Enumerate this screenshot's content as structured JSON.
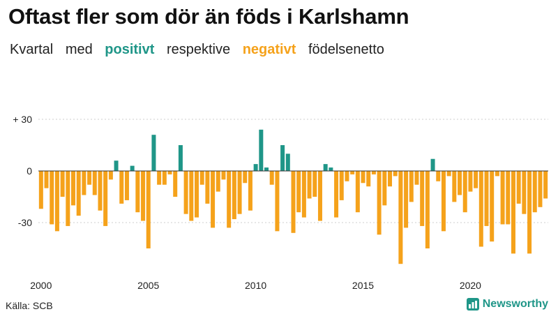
{
  "header": {
    "title": "Oftast fler som dör än föds i Karlshamn",
    "subtitle_parts": [
      "Kvartal",
      "med",
      "positivt",
      "respektive",
      "negativt",
      "födelsenetto"
    ]
  },
  "footer": {
    "source": "Källa: SCB",
    "brand": "Newsworthy"
  },
  "colors": {
    "positive": "#1f9688",
    "negative": "#f5a21b",
    "baseline": "#333333",
    "gridline": "#cccccc"
  },
  "chart_data": {
    "type": "bar",
    "title": "Oftast fler som dör än föds i Karlshamn",
    "subtitle": "Kvartal med positivt respektive negativt födelsenetto",
    "xlabel": "",
    "ylabel": "",
    "ylim": [
      -55,
      30
    ],
    "y_ticks": [
      30,
      0,
      -30
    ],
    "y_tick_labels": [
      "+ 30",
      "0",
      "-30"
    ],
    "x_ticks": [
      "2000",
      "2005",
      "2010",
      "2015",
      "2020"
    ],
    "grid": "horizontal dotted",
    "start": "2000 Q1",
    "frequency": "quarterly",
    "values": [
      -22,
      -10,
      -31,
      -35,
      -15,
      -32,
      -20,
      -26,
      -14,
      -8,
      -14,
      -23,
      -32,
      -5,
      6,
      -19,
      -17,
      3,
      -24,
      -29,
      -45,
      21,
      -8,
      -8,
      -2,
      -15,
      15,
      -25,
      -29,
      -27,
      -8,
      -19,
      -33,
      -12,
      -5,
      -33,
      -28,
      -25,
      -7,
      -23,
      4,
      24,
      2,
      -8,
      -35,
      15,
      10,
      -36,
      -24,
      -27,
      -16,
      -15,
      -29,
      4,
      2,
      -27,
      -17,
      -6,
      -2,
      -24,
      -7,
      -9,
      -2,
      -37,
      -20,
      -9,
      -3,
      -54,
      -33,
      -18,
      -8,
      -32,
      -45,
      7,
      -6,
      -35,
      -3,
      -18,
      -14,
      -24,
      -12,
      -10,
      -44,
      -32,
      -41,
      -3,
      -31,
      -31,
      -48,
      -19,
      -25,
      -48,
      -24,
      -21,
      -16
    ]
  }
}
